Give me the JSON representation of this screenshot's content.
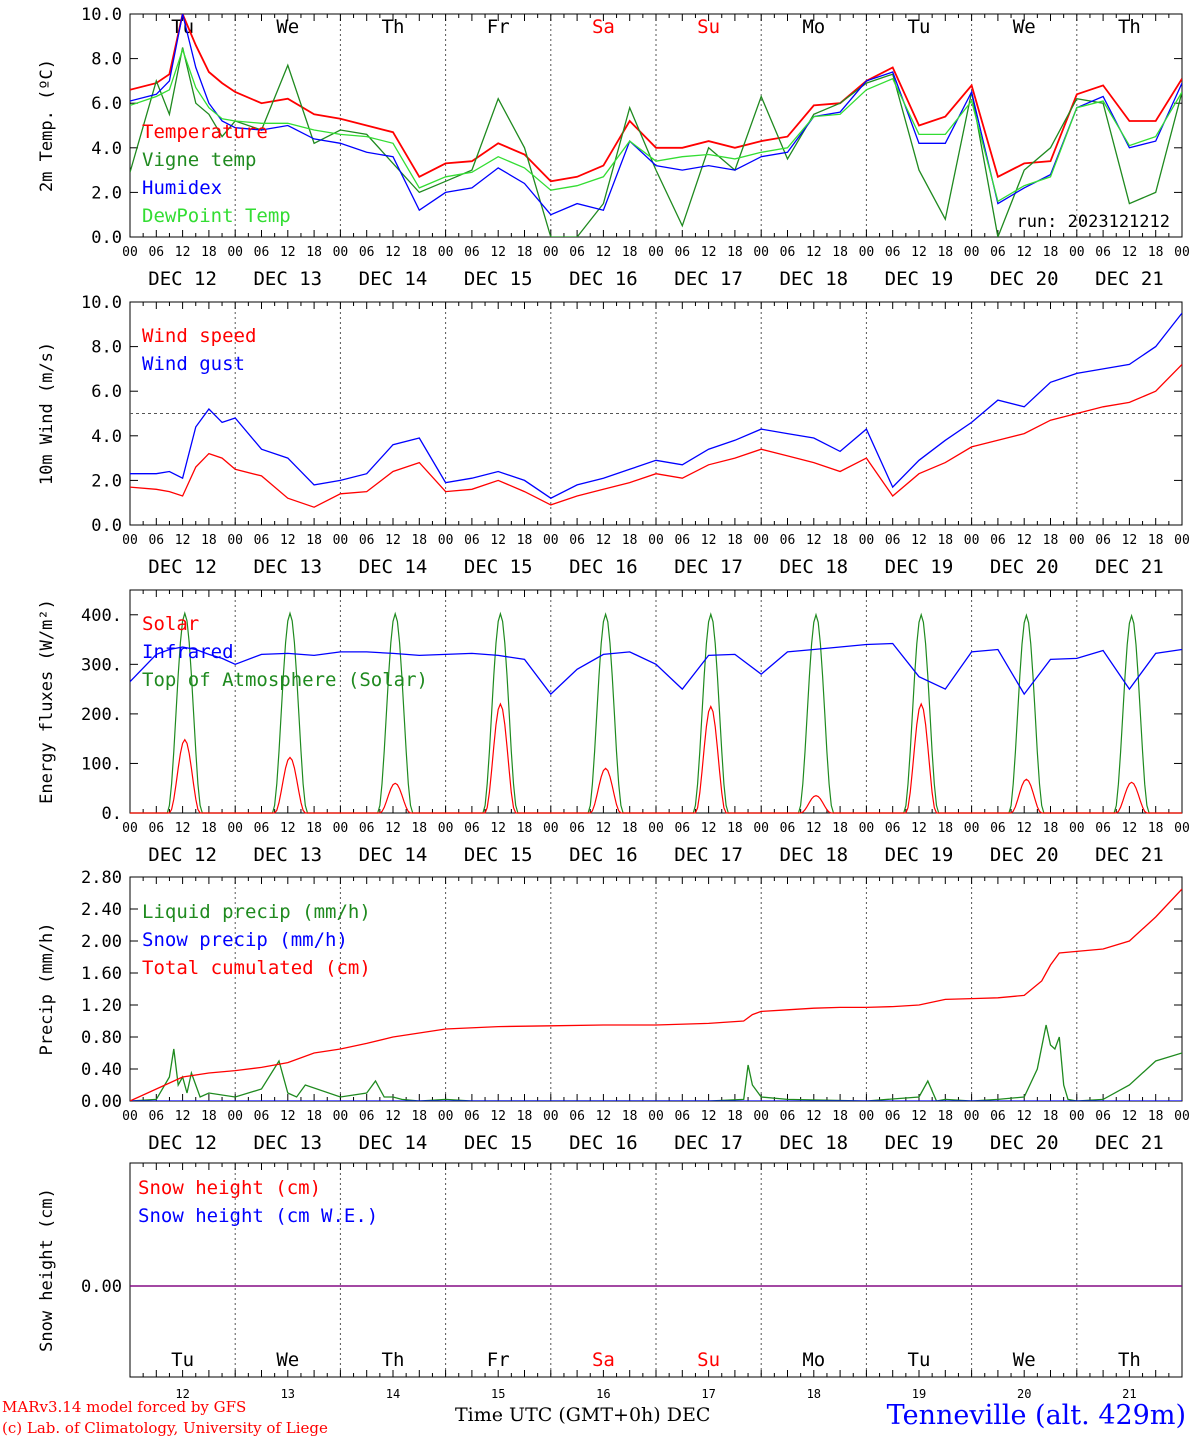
{
  "colors": {
    "red": "#ff0000",
    "green": "#1f8a1f",
    "blue": "#0000ff",
    "light_green": "#33dd33",
    "purple": "#7f007f",
    "grid": "#555555"
  },
  "footer": {
    "model_note": "MARv3.14 model forced by GFS",
    "copyright": "(c) Lab. of Climatology, University of Liege",
    "xaxis_label": "Time UTC (GMT+0h) DEC",
    "station": "Tenneville (alt. 429m)"
  },
  "chart_data": [
    {
      "type": "line",
      "ylabel": "2m Temp. (ºC)",
      "ylim": [
        0,
        10
      ],
      "yticks": [
        "0.0",
        "2.0",
        "4.0",
        "6.0",
        "8.0",
        "10.0"
      ],
      "annotation": "run: 2023121212",
      "weekday_labels": [
        "Tu",
        "We",
        "Th",
        "Fr",
        "Sa",
        "Su",
        "Mo",
        "Tu",
        "We",
        "Th"
      ],
      "weekend_days": [
        4,
        5
      ],
      "date_labels": [
        "DEC 12",
        "DEC 13",
        "DEC 14",
        "DEC 15",
        "DEC 16",
        "DEC 17",
        "DEC 18",
        "DEC 19",
        "DEC 20",
        "DEC 21"
      ],
      "hour_ticks": [
        "00",
        "06",
        "12",
        "18"
      ],
      "x_unit": "hours since 2023-12-12 00 UTC",
      "legend": [
        "Temperature",
        "Vigne temp",
        "Humidex",
        "DewPoint Temp"
      ],
      "series": [
        {
          "name": "Temperature",
          "color": "red",
          "x": [
            0,
            6,
            9,
            12,
            15,
            18,
            21,
            24,
            30,
            36,
            42,
            48,
            54,
            60,
            66,
            72,
            78,
            84,
            90,
            96,
            102,
            108,
            114,
            120,
            126,
            132,
            138,
            144,
            150,
            156,
            162,
            168,
            174,
            180,
            186,
            192,
            198,
            204,
            210,
            216,
            222,
            228,
            234,
            240
          ],
          "y": [
            6.6,
            6.9,
            7.3,
            10.0,
            8.6,
            7.4,
            6.9,
            6.5,
            6.0,
            6.2,
            5.5,
            5.3,
            5.0,
            4.7,
            2.7,
            3.3,
            3.4,
            4.2,
            3.7,
            2.5,
            2.7,
            3.2,
            5.2,
            4.0,
            4.0,
            4.3,
            4.0,
            4.3,
            4.5,
            5.9,
            6.0,
            7.0,
            7.6,
            5.0,
            5.4,
            6.8,
            2.7,
            3.3,
            3.4,
            6.4,
            6.8,
            5.2,
            5.2,
            7.1
          ]
        },
        {
          "name": "Vigne temp",
          "color": "green",
          "x": [
            0,
            6,
            9,
            12,
            15,
            18,
            21,
            24,
            30,
            36,
            42,
            48,
            54,
            60,
            66,
            72,
            78,
            84,
            90,
            96,
            102,
            108,
            114,
            120,
            126,
            132,
            138,
            144,
            150,
            156,
            162,
            168,
            174,
            180,
            186,
            192,
            198,
            204,
            210,
            216,
            222,
            228,
            234,
            240
          ],
          "y": [
            2.9,
            7.0,
            5.5,
            8.5,
            6.0,
            5.5,
            4.5,
            5.2,
            4.8,
            7.7,
            4.2,
            4.8,
            4.6,
            3.3,
            2.0,
            2.5,
            3.0,
            6.2,
            4.0,
            0.0,
            0.0,
            1.5,
            5.8,
            3.0,
            0.5,
            4.0,
            3.0,
            6.3,
            3.5,
            5.5,
            6.0,
            6.9,
            7.3,
            3.0,
            0.8,
            6.5,
            0.0,
            3.0,
            4.0,
            6.2,
            6.0,
            1.5,
            2.0,
            6.5
          ]
        },
        {
          "name": "Humidex",
          "color": "blue",
          "x": [
            0,
            6,
            9,
            12,
            15,
            18,
            21,
            24,
            30,
            36,
            42,
            48,
            54,
            60,
            66,
            72,
            78,
            84,
            90,
            96,
            102,
            108,
            114,
            120,
            126,
            132,
            138,
            144,
            150,
            156,
            162,
            168,
            174,
            180,
            186,
            192,
            198,
            204,
            210,
            216,
            222,
            228,
            234,
            240
          ],
          "y": [
            6.1,
            6.4,
            7.0,
            10.0,
            7.6,
            6.0,
            5.2,
            4.9,
            4.8,
            5.0,
            4.4,
            4.2,
            3.8,
            3.6,
            1.2,
            2.0,
            2.2,
            3.1,
            2.4,
            1.0,
            1.5,
            1.2,
            4.3,
            3.2,
            3.0,
            3.2,
            3.0,
            3.6,
            3.8,
            5.4,
            5.6,
            7.0,
            7.4,
            4.2,
            4.2,
            6.5,
            1.5,
            2.2,
            2.8,
            5.8,
            6.3,
            4.0,
            4.3,
            6.9
          ]
        },
        {
          "name": "DewPoint Temp",
          "color": "light_green",
          "x": [
            0,
            6,
            9,
            12,
            15,
            18,
            21,
            24,
            30,
            36,
            42,
            48,
            54,
            60,
            66,
            72,
            78,
            84,
            90,
            96,
            102,
            108,
            114,
            120,
            126,
            132,
            138,
            144,
            150,
            156,
            162,
            168,
            174,
            180,
            186,
            192,
            198,
            204,
            210,
            216,
            222,
            228,
            234,
            240
          ],
          "y": [
            5.9,
            6.3,
            6.6,
            8.4,
            6.7,
            5.8,
            5.3,
            5.2,
            5.1,
            5.1,
            4.8,
            4.6,
            4.5,
            4.2,
            2.2,
            2.7,
            2.9,
            3.6,
            3.1,
            2.1,
            2.3,
            2.7,
            4.3,
            3.4,
            3.6,
            3.7,
            3.5,
            3.8,
            4.0,
            5.4,
            5.5,
            6.6,
            7.1,
            4.6,
            4.6,
            6.1,
            1.6,
            2.3,
            2.7,
            5.8,
            6.1,
            4.1,
            4.5,
            6.5
          ]
        }
      ]
    },
    {
      "type": "line",
      "ylabel": "10m Wind (m/s)",
      "ylim": [
        0,
        10
      ],
      "yticks": [
        "0.0",
        "2.0",
        "4.0",
        "6.0",
        "8.0",
        "10.0"
      ],
      "reference_line": 5,
      "date_labels": [
        "DEC 12",
        "DEC 13",
        "DEC 14",
        "DEC 15",
        "DEC 16",
        "DEC 17",
        "DEC 18",
        "DEC 19",
        "DEC 20",
        "DEC 21"
      ],
      "hour_ticks": [
        "00",
        "06",
        "12",
        "18"
      ],
      "legend": [
        "Wind speed",
        "Wind gust"
      ],
      "series": [
        {
          "name": "Wind speed",
          "color": "red",
          "x": [
            0,
            6,
            9,
            12,
            15,
            18,
            21,
            24,
            30,
            36,
            42,
            48,
            54,
            60,
            66,
            72,
            78,
            84,
            90,
            96,
            102,
            108,
            114,
            120,
            126,
            132,
            138,
            144,
            150,
            156,
            162,
            168,
            174,
            180,
            186,
            192,
            198,
            204,
            210,
            216,
            222,
            228,
            234,
            240
          ],
          "y": [
            1.7,
            1.6,
            1.5,
            1.3,
            2.6,
            3.2,
            3.0,
            2.5,
            2.2,
            1.2,
            0.8,
            1.4,
            1.5,
            2.4,
            2.8,
            1.5,
            1.6,
            2.0,
            1.5,
            0.9,
            1.3,
            1.6,
            1.9,
            2.3,
            2.1,
            2.7,
            3.0,
            3.4,
            3.1,
            2.8,
            2.4,
            3.0,
            1.3,
            2.3,
            2.8,
            3.5,
            3.8,
            4.1,
            4.7,
            5.0,
            5.3,
            5.5,
            6.0,
            7.2
          ]
        },
        {
          "name": "Wind gust",
          "color": "blue",
          "x": [
            0,
            6,
            9,
            12,
            15,
            18,
            21,
            24,
            30,
            36,
            42,
            48,
            54,
            60,
            66,
            72,
            78,
            84,
            90,
            96,
            102,
            108,
            114,
            120,
            126,
            132,
            138,
            144,
            150,
            156,
            162,
            168,
            174,
            180,
            186,
            192,
            198,
            204,
            210,
            216,
            222,
            228,
            234,
            240
          ],
          "y": [
            2.3,
            2.3,
            2.4,
            2.1,
            4.4,
            5.2,
            4.6,
            4.8,
            3.4,
            3.0,
            1.8,
            2.0,
            2.3,
            3.6,
            3.9,
            1.9,
            2.1,
            2.4,
            2.0,
            1.2,
            1.8,
            2.1,
            2.5,
            2.9,
            2.7,
            3.4,
            3.8,
            4.3,
            4.1,
            3.9,
            3.3,
            4.3,
            1.7,
            2.9,
            3.8,
            4.6,
            5.6,
            5.3,
            6.4,
            6.8,
            7.0,
            7.2,
            8.0,
            9.5
          ]
        }
      ]
    },
    {
      "type": "line",
      "ylabel": "Energy fluxes (W/m²)",
      "ylim": [
        0,
        450
      ],
      "yticks": [
        "0.",
        "100.",
        "200.",
        "300.",
        "400."
      ],
      "date_labels": [
        "DEC 12",
        "DEC 13",
        "DEC 14",
        "DEC 15",
        "DEC 16",
        "DEC 17",
        "DEC 18",
        "DEC 19",
        "DEC 20",
        "DEC 21"
      ],
      "hour_ticks": [
        "00",
        "06",
        "12",
        "18"
      ],
      "legend": [
        "Solar",
        "Infrared",
        "Top of Atmosphere (Solar)"
      ],
      "daily_peaks": {
        "Solar": [
          148,
          112,
          60,
          220,
          90,
          215,
          35,
          220,
          68,
          62
        ],
        "Top of Atmosphere (Solar)": [
          403,
          403,
          402,
          402,
          401,
          401,
          400,
          400,
          399,
          398
        ]
      },
      "series": [
        {
          "name": "Infrared",
          "color": "blue",
          "x": [
            0,
            6,
            9,
            12,
            15,
            18,
            21,
            24,
            30,
            36,
            42,
            48,
            54,
            60,
            66,
            72,
            78,
            84,
            90,
            96,
            102,
            108,
            114,
            120,
            126,
            132,
            138,
            144,
            150,
            156,
            162,
            168,
            174,
            180,
            186,
            192,
            198,
            204,
            210,
            216,
            222,
            228,
            234,
            240
          ],
          "y": [
            265,
            320,
            330,
            335,
            330,
            320,
            312,
            300,
            320,
            322,
            318,
            325,
            325,
            322,
            318,
            320,
            322,
            318,
            310,
            240,
            290,
            320,
            325,
            300,
            250,
            318,
            320,
            280,
            325,
            330,
            335,
            340,
            342,
            275,
            250,
            325,
            330,
            240,
            310,
            312,
            328,
            250,
            322,
            330
          ]
        }
      ]
    },
    {
      "type": "line",
      "ylabel": "Precip (mm/h)",
      "ylim": [
        0,
        2.8
      ],
      "yticks": [
        "0.00",
        "0.40",
        "0.80",
        "1.20",
        "1.60",
        "2.00",
        "2.40",
        "2.80"
      ],
      "date_labels": [
        "DEC 12",
        "DEC 13",
        "DEC 14",
        "DEC 15",
        "DEC 16",
        "DEC 17",
        "DEC 18",
        "DEC 19",
        "DEC 20",
        "DEC 21"
      ],
      "hour_ticks": [
        "00",
        "06",
        "12",
        "18"
      ],
      "legend": [
        "Liquid precip (mm/h)",
        "Snow precip (mm/h)",
        "Total cumulated (cm)"
      ],
      "series": [
        {
          "name": "Liquid precip (mm/h)",
          "color": "green",
          "x": [
            0,
            6,
            9,
            10,
            11,
            12,
            13,
            14,
            16,
            18,
            24,
            30,
            34,
            36,
            38,
            40,
            48,
            54,
            56,
            58,
            60,
            62,
            66,
            72,
            78,
            84,
            96,
            108,
            120,
            132,
            140,
            141,
            142,
            144,
            150,
            168,
            180,
            182,
            184,
            186,
            192,
            198,
            204,
            207,
            209,
            210,
            211,
            212,
            213,
            214,
            216,
            222,
            228,
            234,
            240
          ],
          "y": [
            0,
            0.02,
            0.3,
            0.65,
            0.2,
            0.3,
            0.1,
            0.35,
            0.05,
            0.1,
            0.05,
            0.15,
            0.5,
            0.1,
            0.05,
            0.2,
            0.05,
            0.1,
            0.25,
            0.05,
            0.05,
            0.02,
            0,
            0.02,
            0,
            0,
            0,
            0,
            0,
            0,
            0.02,
            0.45,
            0.2,
            0.05,
            0.02,
            0,
            0.05,
            0.25,
            0,
            0.02,
            0,
            0.02,
            0.05,
            0.4,
            0.95,
            0.7,
            0.65,
            0.8,
            0.2,
            0.02,
            0,
            0.02,
            0.2,
            0.5,
            0.6
          ]
        },
        {
          "name": "Snow precip (mm/h)",
          "color": "blue",
          "x": [
            0,
            240
          ],
          "y": [
            0,
            0
          ]
        },
        {
          "name": "Total cumulated (cm)",
          "color": "red",
          "x": [
            0,
            12,
            18,
            24,
            30,
            36,
            42,
            48,
            54,
            60,
            66,
            72,
            84,
            96,
            108,
            120,
            132,
            140,
            142,
            144,
            150,
            156,
            162,
            168,
            174,
            180,
            186,
            192,
            198,
            204,
            208,
            210,
            212,
            216,
            222,
            228,
            234,
            240
          ],
          "y": [
            0,
            0.3,
            0.35,
            0.38,
            0.42,
            0.48,
            0.6,
            0.65,
            0.72,
            0.8,
            0.85,
            0.9,
            0.93,
            0.94,
            0.95,
            0.95,
            0.97,
            1.0,
            1.08,
            1.12,
            1.14,
            1.16,
            1.17,
            1.17,
            1.18,
            1.2,
            1.27,
            1.28,
            1.29,
            1.32,
            1.5,
            1.7,
            1.85,
            1.87,
            1.9,
            2.0,
            2.3,
            2.65
          ]
        }
      ]
    },
    {
      "type": "line",
      "ylabel": "Snow height (cm)",
      "yticks": [
        "0.00"
      ],
      "legend": [
        "Snow height (cm)",
        "Snow height (cm W.E.)"
      ],
      "weekday_labels": [
        "Tu",
        "We",
        "Th",
        "Fr",
        "Sa",
        "Su",
        "Mo",
        "Tu",
        "We",
        "Th"
      ],
      "weekend_days": [
        4,
        5
      ],
      "day_numbers": [
        "12",
        "13",
        "14",
        "15",
        "16",
        "17",
        "18",
        "19",
        "20",
        "21"
      ],
      "series": [
        {
          "name": "Snow height (cm)",
          "color": "red",
          "x": [
            0,
            240
          ],
          "y": [
            0,
            0
          ]
        },
        {
          "name": "Snow height (cm W.E.)",
          "color": "blue",
          "x": [
            0,
            240
          ],
          "y": [
            0,
            0
          ]
        }
      ]
    }
  ]
}
